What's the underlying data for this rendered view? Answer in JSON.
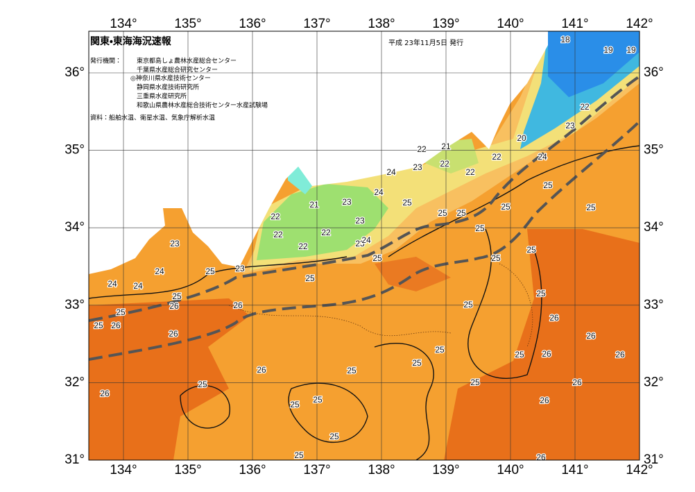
{
  "header": {
    "title": "関東・東海海況速報",
    "issue_date": "平成 23年11月5日 発行",
    "issuer_label": "発行機関：",
    "issuers": [
      "東京都島しょ農林水産総合センター",
      "千葉県水産総合研究センター",
      "◎神奈川県水産技術センター",
      "静岡県水産技術研究所",
      "三重県水産研究所",
      "和歌山県農林水産総合技術センター水産試験場"
    ],
    "sources": "資料：船舶水温、衛星水温、気象庁解析水温"
  },
  "map": {
    "lon_ticks": [
      {
        "value": 134,
        "label": "134°"
      },
      {
        "value": 135,
        "label": "135°"
      },
      {
        "value": 136,
        "label": "136°"
      },
      {
        "value": 137,
        "label": "137°"
      },
      {
        "value": 138,
        "label": "138°"
      },
      {
        "value": 139,
        "label": "139°"
      },
      {
        "value": 140,
        "label": "140°"
      },
      {
        "value": 141,
        "label": "141°"
      },
      {
        "value": 142,
        "label": "142°"
      }
    ],
    "lat_ticks": [
      {
        "value": 31,
        "label": "31°"
      },
      {
        "value": 32,
        "label": "32°"
      },
      {
        "value": 33,
        "label": "33°"
      },
      {
        "value": 34,
        "label": "34°"
      },
      {
        "value": 35,
        "label": "35°"
      },
      {
        "value": 36,
        "label": "36°"
      }
    ],
    "contour_labels": [
      "18",
      "19",
      "19",
      "22",
      "23",
      "20",
      "24",
      "22",
      "25",
      "25",
      "21",
      "22",
      "22",
      "24",
      "23",
      "22",
      "24",
      "25",
      "21",
      "23",
      "23",
      "22",
      "22",
      "22",
      "22",
      "23",
      "24",
      "25",
      "25",
      "25",
      "25",
      "25",
      "23",
      "24",
      "25",
      "23",
      "25",
      "24",
      "24",
      "25",
      "26",
      "25",
      "26",
      "25",
      "26",
      "26",
      "25",
      "25",
      "25",
      "25",
      "26",
      "26",
      "25",
      "26",
      "25",
      "26",
      "25",
      "25",
      "26",
      "25",
      "26",
      "25",
      "26",
      "25",
      "25",
      "26",
      "25",
      "25",
      "26"
    ]
  }
}
